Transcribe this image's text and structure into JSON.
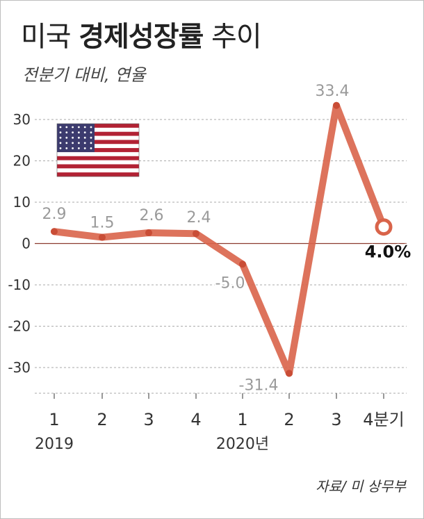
{
  "header": {
    "title_prefix": "미국",
    "title_bold": "경제성장률",
    "title_suffix": "추이",
    "subtitle": "전분기 대비, 연율"
  },
  "source": "자료/ 미 상무부",
  "colors": {
    "line": "#d9644a",
    "marker": "#c94d36",
    "grid": "#aaaaaa",
    "zero": "#8b3a2e"
  },
  "flag_icon": "us-flag-icon",
  "chart_data": {
    "type": "line",
    "categories": [
      "1",
      "2",
      "3",
      "4",
      "1",
      "2",
      "3",
      "4분기"
    ],
    "year_labels": [
      "2019",
      "2020년"
    ],
    "values": [
      2.9,
      1.5,
      2.6,
      2.4,
      -5.0,
      -31.4,
      33.4,
      4.0
    ],
    "value_labels": [
      "2.9",
      "1.5",
      "2.6",
      "2.4",
      "-5.0",
      "-31.4",
      "33.4",
      "4.0%"
    ],
    "title": "미국 경제성장률 추이",
    "subtitle": "전분기 대비, 연율",
    "ylim": [
      -35,
      35
    ],
    "yticks": [
      30,
      20,
      10,
      0,
      -10,
      -20,
      -30
    ],
    "grid": true,
    "legend": "none"
  }
}
